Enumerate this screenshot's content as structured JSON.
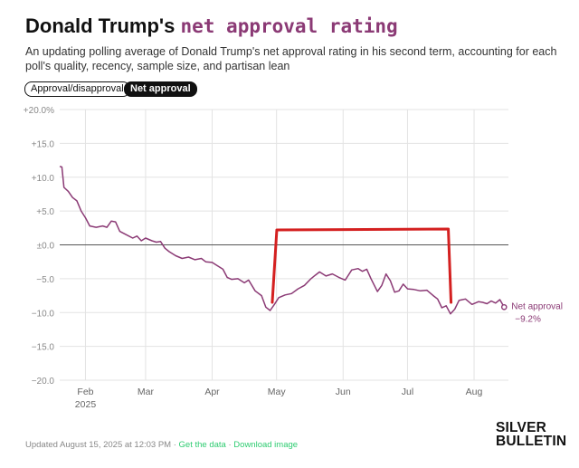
{
  "header": {
    "title_prefix": "Donald Trump's",
    "title_highlight": "net approval rating",
    "subtitle": "An updating polling average of Donald Trump's net approval rating in his second term, accounting for each poll's quality, recency, sample size, and partisan lean"
  },
  "toggles": {
    "approval_disapproval": "Approval/disapproval",
    "net_approval": "Net approval",
    "active": "net_approval"
  },
  "colors": {
    "series": "#8b3a75",
    "annotation": "#d42020",
    "grid": "#e3e3e3",
    "zero_line": "#555555"
  },
  "chart_data": {
    "type": "line",
    "title": "Donald Trump's net approval rating",
    "y_ticks": [
      "+20.0%",
      "+15.0",
      "+10.0",
      "+5.0",
      "±0.0",
      "−5.0",
      "−10.0",
      "−15.0",
      "−20.0"
    ],
    "ylim": [
      -20,
      20
    ],
    "x_ticks": [
      "Feb",
      "Mar",
      "Apr",
      "May",
      "Jun",
      "Jul",
      "Aug"
    ],
    "x_year_label": "2025",
    "xlim": [
      "2025-01-20",
      "2025-08-17"
    ],
    "series": [
      {
        "name": "Net approval",
        "end_label": "Net approval",
        "end_value": "−9.2%",
        "points": [
          [
            "2025-01-20",
            11.6
          ],
          [
            "2025-01-21",
            11.5
          ],
          [
            "2025-01-22",
            8.5
          ],
          [
            "2025-01-24",
            7.9
          ],
          [
            "2025-01-26",
            7.0
          ],
          [
            "2025-01-28",
            6.5
          ],
          [
            "2025-01-30",
            5.0
          ],
          [
            "2025-02-01",
            4.0
          ],
          [
            "2025-02-03",
            2.8
          ],
          [
            "2025-02-06",
            2.6
          ],
          [
            "2025-02-09",
            2.8
          ],
          [
            "2025-02-11",
            2.6
          ],
          [
            "2025-02-13",
            3.5
          ],
          [
            "2025-02-15",
            3.4
          ],
          [
            "2025-02-17",
            2.0
          ],
          [
            "2025-02-20",
            1.5
          ],
          [
            "2025-02-23",
            1.0
          ],
          [
            "2025-02-25",
            1.3
          ],
          [
            "2025-02-27",
            0.6
          ],
          [
            "2025-03-01",
            1.0
          ],
          [
            "2025-03-04",
            0.6
          ],
          [
            "2025-03-06",
            0.4
          ],
          [
            "2025-03-08",
            0.5
          ],
          [
            "2025-03-10",
            -0.5
          ],
          [
            "2025-03-12",
            -1.0
          ],
          [
            "2025-03-15",
            -1.6
          ],
          [
            "2025-03-18",
            -2.0
          ],
          [
            "2025-03-21",
            -1.8
          ],
          [
            "2025-03-24",
            -2.2
          ],
          [
            "2025-03-27",
            -2.0
          ],
          [
            "2025-03-29",
            -2.5
          ],
          [
            "2025-04-01",
            -2.6
          ],
          [
            "2025-04-03",
            -3.0
          ],
          [
            "2025-04-06",
            -3.6
          ],
          [
            "2025-04-08",
            -4.8
          ],
          [
            "2025-04-10",
            -5.1
          ],
          [
            "2025-04-13",
            -5.0
          ],
          [
            "2025-04-16",
            -5.6
          ],
          [
            "2025-04-18",
            -5.2
          ],
          [
            "2025-04-21",
            -6.8
          ],
          [
            "2025-04-24",
            -7.5
          ],
          [
            "2025-04-26",
            -9.2
          ],
          [
            "2025-04-28",
            -9.7
          ],
          [
            "2025-04-30",
            -8.8
          ],
          [
            "2025-05-02",
            -7.8
          ],
          [
            "2025-05-05",
            -7.4
          ],
          [
            "2025-05-08",
            -7.2
          ],
          [
            "2025-05-11",
            -6.5
          ],
          [
            "2025-05-14",
            -6.0
          ],
          [
            "2025-05-17",
            -5.0
          ],
          [
            "2025-05-19",
            -4.5
          ],
          [
            "2025-05-21",
            -4.0
          ],
          [
            "2025-05-24",
            -4.6
          ],
          [
            "2025-05-27",
            -4.3
          ],
          [
            "2025-05-30",
            -4.8
          ],
          [
            "2025-06-02",
            -5.2
          ],
          [
            "2025-06-05",
            -3.7
          ],
          [
            "2025-06-08",
            -3.5
          ],
          [
            "2025-06-10",
            -3.9
          ],
          [
            "2025-06-12",
            -3.6
          ],
          [
            "2025-06-14",
            -5.0
          ],
          [
            "2025-06-17",
            -6.9
          ],
          [
            "2025-06-19",
            -6.0
          ],
          [
            "2025-06-21",
            -4.3
          ],
          [
            "2025-06-23",
            -5.3
          ],
          [
            "2025-06-25",
            -7.0
          ],
          [
            "2025-06-27",
            -6.8
          ],
          [
            "2025-06-29",
            -5.8
          ],
          [
            "2025-07-01",
            -6.5
          ],
          [
            "2025-07-04",
            -6.6
          ],
          [
            "2025-07-07",
            -6.8
          ],
          [
            "2025-07-10",
            -6.7
          ],
          [
            "2025-07-13",
            -7.5
          ],
          [
            "2025-07-15",
            -8.0
          ],
          [
            "2025-07-17",
            -9.3
          ],
          [
            "2025-07-19",
            -9.0
          ],
          [
            "2025-07-21",
            -10.2
          ],
          [
            "2025-07-23",
            -9.5
          ],
          [
            "2025-07-25",
            -8.2
          ],
          [
            "2025-07-28",
            -8.0
          ],
          [
            "2025-07-31",
            -8.8
          ],
          [
            "2025-08-03",
            -8.4
          ],
          [
            "2025-08-05",
            -8.5
          ],
          [
            "2025-08-07",
            -8.7
          ],
          [
            "2025-08-09",
            -8.3
          ],
          [
            "2025-08-11",
            -8.6
          ],
          [
            "2025-08-13",
            -8.1
          ],
          [
            "2025-08-15",
            -9.2
          ]
        ]
      }
    ],
    "annotation": {
      "type": "bracket",
      "start": "2025-04-29",
      "end": "2025-07-20",
      "top_value": 2.2,
      "bottom_value": -8.5
    },
    "grid": true,
    "zero_line": true
  },
  "footer": {
    "updated": "Updated August 15, 2025 at 12:03 PM",
    "separator": "·",
    "get_data": "Get the data",
    "download_image": "Download image"
  },
  "brand": {
    "line1": "SILVER",
    "line2": "BULLETIN"
  }
}
